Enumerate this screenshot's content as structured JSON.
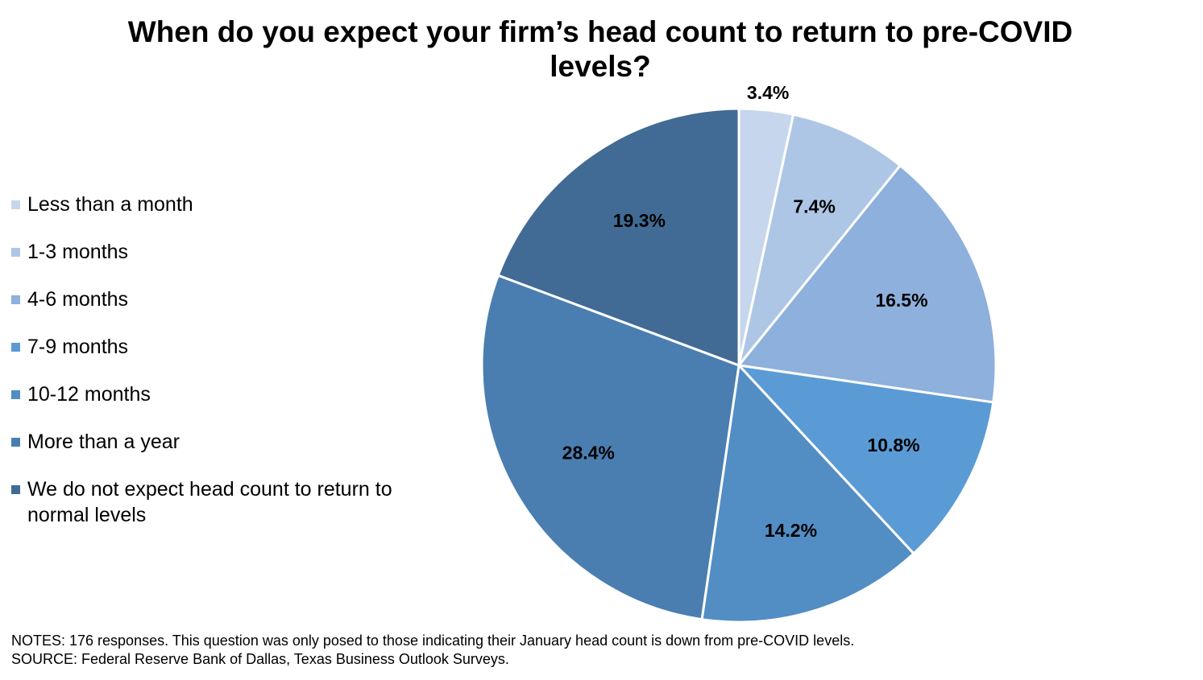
{
  "chart_data": {
    "type": "pie",
    "title": "When do you expect your firm’s head count to return to pre-COVID levels?",
    "categories": [
      "Less than a month",
      "1-3 months",
      "4-6 months",
      "7-9 months",
      "10-12 months",
      "More than a year",
      "We do not expect head count to return to normal levels"
    ],
    "values": [
      3.4,
      7.4,
      16.5,
      10.8,
      14.2,
      28.4,
      19.3
    ],
    "value_labels": [
      "3.4%",
      "7.4%",
      "16.5%",
      "10.8%",
      "14.2%",
      "28.4%",
      "19.3%"
    ],
    "colors": [
      "#c6d6ec",
      "#adc6e5",
      "#8db0dc",
      "#5b9bd5",
      "#528dc4",
      "#4a7eb0",
      "#416b94"
    ],
    "legend_position": "left",
    "start_angle": "12 o'clock",
    "direction": "clockwise"
  },
  "notes": {
    "line1": "NOTES: 176 responses. This question was only posed to those indicating their January head count is down from pre-COVID levels.",
    "line2": "SOURCE: Federal Reserve Bank of Dallas, Texas Business Outlook Surveys."
  }
}
